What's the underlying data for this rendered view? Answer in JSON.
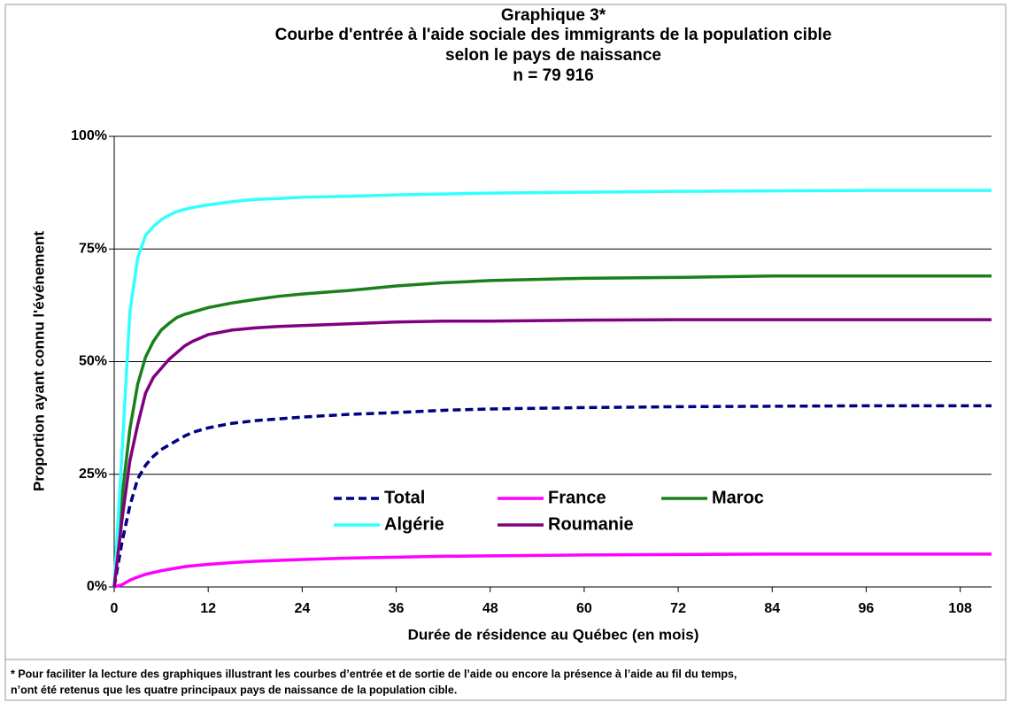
{
  "chart_data": {
    "type": "line",
    "title": [
      "Graphique 3*",
      "Courbe d'entrée à l'aide sociale des immigrants de la population cible",
      "selon le pays de naissance",
      "n = 79 916"
    ],
    "xlabel": "Durée de résidence au Québec (en mois)",
    "ylabel": "Proportion ayant connu l'événement",
    "note": [
      "* Pour faciliter la lecture des graphiques illustrant les courbes d’entrée et de sortie de l’aide ou encore la présence à l’aide au fil du temps,",
      "n’ont été retenus que les quatre principaux pays de naissance de la population cible."
    ],
    "x": [
      0,
      1,
      2,
      3,
      4,
      5,
      6,
      7,
      8,
      9,
      10,
      12,
      15,
      18,
      21,
      24,
      30,
      36,
      42,
      48,
      60,
      72,
      84,
      96,
      108,
      112
    ],
    "series": [
      {
        "name": "Total",
        "color": "#000080",
        "style": "dashed",
        "values": [
          0,
          10,
          18,
          24,
          27,
          29,
          30.5,
          31.5,
          32.5,
          33.5,
          34.3,
          35.3,
          36.3,
          36.9,
          37.3,
          37.7,
          38.3,
          38.7,
          39.2,
          39.5,
          39.8,
          40,
          40.1,
          40.2,
          40.2,
          40.2
        ]
      },
      {
        "name": "France",
        "color": "#ff00ff",
        "style": "solid",
        "values": [
          0,
          0.5,
          1.5,
          2.2,
          2.8,
          3.2,
          3.6,
          3.9,
          4.2,
          4.5,
          4.7,
          5,
          5.4,
          5.7,
          5.9,
          6.1,
          6.4,
          6.6,
          6.8,
          6.9,
          7.1,
          7.2,
          7.3,
          7.3,
          7.3,
          7.3
        ]
      },
      {
        "name": "Maroc",
        "color": "#1a801a",
        "style": "solid",
        "values": [
          0,
          20,
          35,
          45,
          51,
          54.5,
          57,
          58.5,
          59.8,
          60.5,
          61,
          62,
          63,
          63.8,
          64.5,
          65,
          65.8,
          66.8,
          67.5,
          68,
          68.5,
          68.7,
          69,
          69,
          69,
          69
        ]
      },
      {
        "name": "Algérie",
        "color": "#33ffff",
        "style": "solid",
        "values": [
          0,
          30,
          61,
          73,
          78,
          80,
          81.5,
          82.5,
          83.3,
          83.8,
          84.2,
          84.8,
          85.5,
          86,
          86.2,
          86.5,
          86.7,
          87,
          87.2,
          87.4,
          87.6,
          87.8,
          87.9,
          88,
          88,
          88
        ]
      },
      {
        "name": "Roumanie",
        "color": "#800080",
        "style": "solid",
        "values": [
          0,
          15,
          28,
          36,
          43,
          46.5,
          48.5,
          50.5,
          52,
          53.5,
          54.5,
          56,
          57,
          57.5,
          57.8,
          58,
          58.4,
          58.8,
          59,
          59,
          59.2,
          59.3,
          59.3,
          59.3,
          59.3,
          59.3
        ]
      }
    ],
    "xlim": [
      0,
      112
    ],
    "xticks": [
      0,
      12,
      24,
      36,
      48,
      60,
      72,
      84,
      96,
      108
    ],
    "ylim": [
      0,
      100
    ],
    "yticks": [
      {
        "value": 0,
        "label": "0%"
      },
      {
        "value": 25,
        "label": "25%"
      },
      {
        "value": 50,
        "label": "50%"
      },
      {
        "value": 75,
        "label": "75%"
      },
      {
        "value": 100,
        "label": "100%"
      }
    ],
    "grid": true,
    "legend_position": "lower center"
  }
}
